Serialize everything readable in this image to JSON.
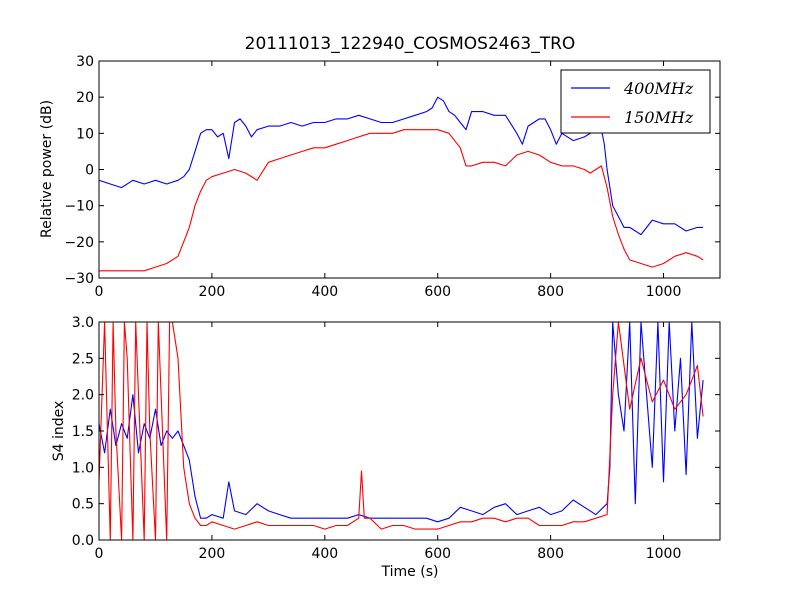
{
  "figure": {
    "title": "20111013_122940_COSMOS2463_TRO",
    "colors": {
      "blue": "#0000ff",
      "red": "#ff0000"
    }
  },
  "chart_data": [
    {
      "type": "line",
      "ylabel": "Relative power (dB)",
      "xlabel": "",
      "xlim": [
        0,
        1100
      ],
      "ylim": [
        -30,
        30
      ],
      "xticks": [
        "0",
        "200",
        "400",
        "600",
        "800",
        "1000"
      ],
      "yticks": [
        "−30",
        "−20",
        "−10",
        "0",
        "10",
        "20",
        "30"
      ],
      "legend": {
        "placement": "top-right",
        "entries": [
          "400MHz",
          "150MHz"
        ]
      },
      "series": [
        {
          "name": "400MHz",
          "color": "#0000ff",
          "x": [
            0,
            20,
            40,
            60,
            80,
            100,
            120,
            140,
            150,
            160,
            170,
            180,
            190,
            200,
            210,
            220,
            230,
            240,
            250,
            260,
            270,
            280,
            300,
            320,
            340,
            360,
            380,
            400,
            420,
            440,
            460,
            480,
            500,
            520,
            540,
            560,
            580,
            590,
            600,
            610,
            620,
            630,
            640,
            650,
            660,
            680,
            700,
            720,
            740,
            750,
            760,
            780,
            790,
            800,
            810,
            820,
            840,
            860,
            870,
            880,
            890,
            895,
            900,
            910,
            920,
            930,
            940,
            960,
            980,
            1000,
            1020,
            1040,
            1060,
            1070
          ],
          "y": [
            -3,
            -4,
            -5,
            -3,
            -4,
            -3,
            -4,
            -3,
            -2,
            0,
            5,
            10,
            11,
            11,
            9,
            10,
            3,
            13,
            14,
            12,
            9,
            11,
            12,
            12,
            13,
            12,
            13,
            13,
            14,
            14,
            15,
            14,
            13,
            13,
            14,
            15,
            16,
            17,
            20,
            19,
            16,
            15,
            13,
            11,
            16,
            16,
            15,
            15,
            10,
            7,
            12,
            14,
            14,
            11,
            7,
            10,
            8,
            9,
            10,
            11,
            11,
            7,
            0,
            -10,
            -13,
            -16,
            -16,
            -18,
            -14,
            -15,
            -15,
            -17,
            -16,
            -16
          ]
        },
        {
          "name": "150MHz",
          "color": "#ff0000",
          "x": [
            0,
            20,
            40,
            60,
            80,
            100,
            120,
            140,
            150,
            160,
            170,
            180,
            190,
            200,
            220,
            240,
            260,
            280,
            300,
            320,
            340,
            360,
            380,
            400,
            420,
            440,
            460,
            480,
            500,
            520,
            540,
            560,
            580,
            600,
            620,
            640,
            650,
            660,
            680,
            700,
            720,
            740,
            760,
            780,
            800,
            820,
            840,
            860,
            870,
            880,
            890,
            900,
            910,
            920,
            930,
            940,
            960,
            980,
            1000,
            1020,
            1040,
            1060,
            1070
          ],
          "y": [
            -28,
            -28,
            -28,
            -28,
            -28,
            -27,
            -26,
            -24,
            -20,
            -16,
            -10,
            -6,
            -3,
            -2,
            -1,
            0,
            -1,
            -3,
            2,
            3,
            4,
            5,
            6,
            6,
            7,
            8,
            9,
            10,
            10,
            10,
            11,
            11,
            11,
            11,
            10,
            6,
            1,
            1,
            2,
            2,
            1,
            4,
            5,
            4,
            2,
            1,
            1,
            0,
            -1,
            0,
            1,
            -5,
            -13,
            -18,
            -22,
            -25,
            -26,
            -27,
            -26,
            -24,
            -23,
            -24,
            -25
          ]
        }
      ]
    },
    {
      "type": "line",
      "ylabel": "S4 index",
      "xlabel": "Time (s)",
      "xlim": [
        0,
        1100
      ],
      "ylim": [
        0,
        3
      ],
      "xticks": [
        "0",
        "200",
        "400",
        "600",
        "800",
        "1000"
      ],
      "yticks": [
        "0.0",
        "0.5",
        "1.0",
        "1.5",
        "2.0",
        "2.5",
        "3.0"
      ],
      "series": [
        {
          "name": "400MHz",
          "color": "#0000ff",
          "x": [
            0,
            10,
            20,
            30,
            40,
            50,
            60,
            70,
            80,
            90,
            100,
            110,
            120,
            130,
            140,
            150,
            160,
            170,
            180,
            190,
            200,
            220,
            230,
            240,
            260,
            280,
            300,
            320,
            340,
            360,
            380,
            400,
            420,
            440,
            460,
            480,
            500,
            520,
            540,
            560,
            580,
            600,
            620,
            640,
            660,
            680,
            700,
            720,
            740,
            760,
            780,
            800,
            820,
            840,
            860,
            880,
            900,
            905,
            910,
            920,
            930,
            940,
            950,
            960,
            970,
            980,
            990,
            1000,
            1010,
            1020,
            1030,
            1040,
            1050,
            1060,
            1070
          ],
          "y": [
            1.6,
            1.2,
            1.8,
            1.3,
            1.6,
            1.4,
            2.0,
            1.2,
            1.6,
            1.4,
            1.8,
            1.3,
            1.5,
            1.4,
            1.5,
            1.3,
            1.1,
            0.6,
            0.3,
            0.3,
            0.35,
            0.3,
            0.8,
            0.4,
            0.35,
            0.5,
            0.4,
            0.35,
            0.3,
            0.3,
            0.3,
            0.3,
            0.3,
            0.3,
            0.35,
            0.3,
            0.3,
            0.3,
            0.3,
            0.3,
            0.3,
            0.25,
            0.3,
            0.45,
            0.4,
            0.35,
            0.45,
            0.5,
            0.35,
            0.4,
            0.45,
            0.35,
            0.4,
            0.55,
            0.45,
            0.35,
            0.5,
            1.0,
            3.0,
            2.0,
            1.5,
            3.0,
            0.5,
            3.0,
            2.0,
            1.0,
            3.0,
            0.8,
            3.0,
            1.5,
            2.5,
            0.9,
            3.0,
            1.4,
            2.2
          ]
        },
        {
          "name": "150MHz",
          "color": "#ff0000",
          "x": [
            0,
            10,
            20,
            25,
            30,
            40,
            45,
            50,
            60,
            65,
            70,
            80,
            85,
            90,
            100,
            105,
            110,
            120,
            125,
            130,
            140,
            150,
            160,
            170,
            180,
            190,
            200,
            220,
            240,
            260,
            280,
            300,
            320,
            340,
            360,
            380,
            400,
            420,
            440,
            460,
            465,
            470,
            480,
            500,
            520,
            540,
            560,
            580,
            600,
            620,
            640,
            660,
            680,
            700,
            720,
            740,
            760,
            780,
            800,
            820,
            840,
            860,
            880,
            900,
            910,
            920,
            940,
            960,
            980,
            1000,
            1020,
            1040,
            1060,
            1070
          ],
          "y": [
            0.8,
            3.0,
            0.0,
            3.0,
            1.5,
            0.0,
            3.0,
            2.5,
            0.0,
            3.0,
            2.0,
            0.0,
            3.0,
            1.5,
            0.0,
            3.0,
            2.0,
            0.0,
            3.0,
            3.0,
            2.5,
            1.0,
            0.5,
            0.3,
            0.2,
            0.2,
            0.25,
            0.2,
            0.15,
            0.2,
            0.25,
            0.2,
            0.2,
            0.2,
            0.2,
            0.2,
            0.15,
            0.2,
            0.2,
            0.3,
            0.95,
            0.3,
            0.3,
            0.15,
            0.2,
            0.2,
            0.15,
            0.15,
            0.15,
            0.2,
            0.25,
            0.25,
            0.3,
            0.3,
            0.25,
            0.3,
            0.3,
            0.2,
            0.2,
            0.2,
            0.25,
            0.25,
            0.3,
            0.35,
            2.0,
            3.0,
            1.8,
            2.5,
            1.9,
            2.2,
            1.8,
            2.0,
            2.4,
            1.7
          ]
        }
      ]
    }
  ]
}
